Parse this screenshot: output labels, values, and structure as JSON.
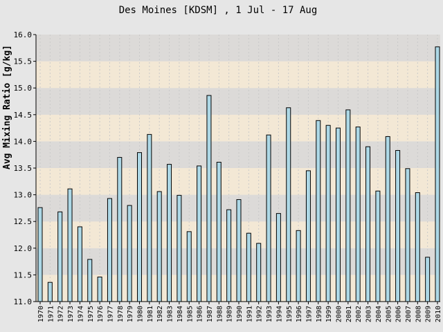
{
  "chart_data": {
    "type": "bar",
    "title": "Des Moines [KDSM] , 1 Jul - 17 Aug",
    "xlabel": "",
    "ylabel": "Avg Mixing Ratio [g/kg]",
    "ylim": [
      11.0,
      16.0
    ],
    "y_ticks": [
      "11.0",
      "11.5",
      "12.0",
      "12.5",
      "13.0",
      "13.5",
      "14.0",
      "14.5",
      "15.0",
      "15.5",
      "16.0"
    ],
    "categories": [
      "1970",
      "1971",
      "1972",
      "1973",
      "1974",
      "1975",
      "1976",
      "1977",
      "1978",
      "1979",
      "1980",
      "1981",
      "1982",
      "1983",
      "1984",
      "1985",
      "1986",
      "1987",
      "1988",
      "1989",
      "1990",
      "1991",
      "1992",
      "1993",
      "1994",
      "1995",
      "1996",
      "1997",
      "1998",
      "1999",
      "2000",
      "2001",
      "2002",
      "2003",
      "2004",
      "2005",
      "2006",
      "2007",
      "2008",
      "2009",
      "2010"
    ],
    "values": [
      12.76,
      11.36,
      12.68,
      13.11,
      12.4,
      11.79,
      11.46,
      12.93,
      13.7,
      12.8,
      13.79,
      14.13,
      13.06,
      13.57,
      12.99,
      12.31,
      13.54,
      14.86,
      13.61,
      12.72,
      12.91,
      12.28,
      12.09,
      14.12,
      12.65,
      14.63,
      12.33,
      13.45,
      14.39,
      14.3,
      14.25,
      14.59,
      14.27,
      13.9,
      13.07,
      14.09,
      13.83,
      13.49,
      13.04,
      11.83,
      15.77
    ],
    "grid": true,
    "legend": "none",
    "colors": {
      "bar_fill": "#add8e6",
      "bar_stroke": "#000000",
      "band_dark": "#dcdad8",
      "band_light": "#f3e8d5",
      "background": "#e6e6e6"
    }
  }
}
